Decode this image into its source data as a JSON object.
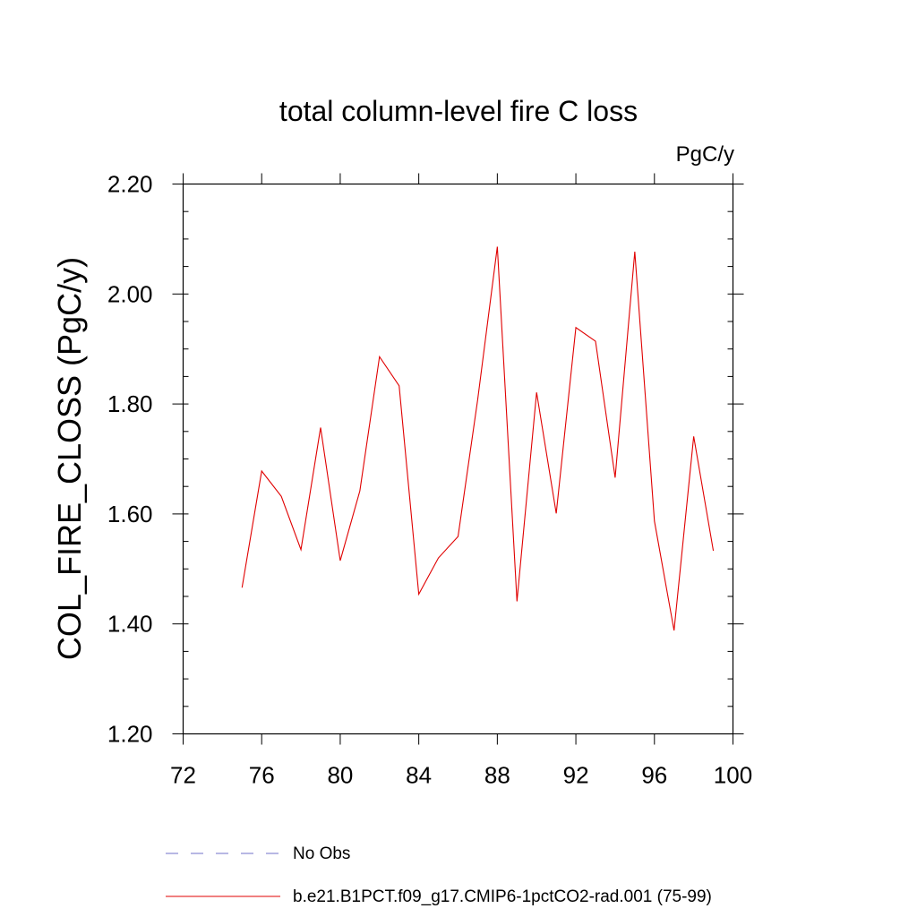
{
  "chart_data": {
    "type": "line",
    "title": "total column-level fire C loss",
    "units": "PgC/y",
    "xlabel": "",
    "ylabel": "COL_FIRE_CLOSS  (PgC/y)",
    "xlim": [
      72,
      100
    ],
    "ylim": [
      1.2,
      2.2
    ],
    "x_ticks": [
      "72",
      "76",
      "80",
      "84",
      "88",
      "92",
      "96",
      "100"
    ],
    "y_ticks": [
      "1.20",
      "1.40",
      "1.60",
      "1.80",
      "2.00",
      "2.20"
    ],
    "grid": false,
    "legend_position": "bottom",
    "series": [
      {
        "name": "b.e21.B1PCT.f09_g17.CMIP6-1pctCO2-rad.001 (75-99)",
        "color": "#e00000",
        "style": "solid",
        "x": [
          75,
          76,
          77,
          78,
          79,
          80,
          81,
          82,
          83,
          84,
          85,
          86,
          87,
          88,
          89,
          90,
          91,
          92,
          93,
          94,
          95,
          96,
          97,
          98,
          99
        ],
        "values": [
          1.466,
          1.678,
          1.632,
          1.535,
          1.757,
          1.515,
          1.642,
          1.886,
          1.833,
          1.454,
          1.52,
          1.559,
          1.808,
          2.086,
          1.441,
          1.821,
          1.601,
          1.939,
          1.914,
          1.666,
          2.077,
          1.587,
          1.388,
          1.741,
          1.533
        ]
      },
      {
        "name": "No Obs",
        "color": "#7070c8",
        "style": "dashed",
        "x": [],
        "values": []
      }
    ]
  }
}
